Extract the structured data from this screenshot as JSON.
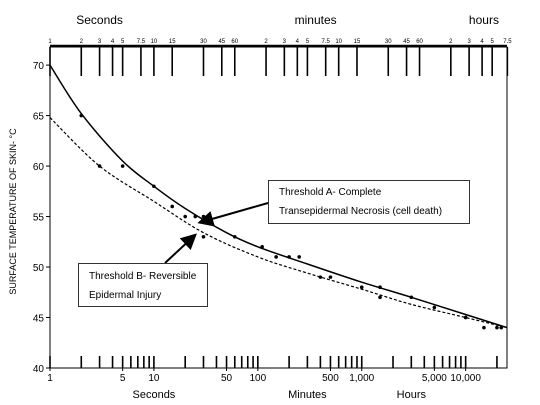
{
  "chart_data": {
    "type": "line",
    "ylabel": "SURFACE TEMPERATURE OF SKIN- °C",
    "ylim": [
      40,
      71
    ],
    "yticks": [
      40,
      45,
      50,
      55,
      60,
      65,
      70
    ],
    "x_scale": "log",
    "xlim": [
      1,
      25000
    ],
    "bottom_axis": {
      "ticks": [
        {
          "x": 1,
          "label": "1"
        },
        {
          "x": 5,
          "label": "5"
        },
        {
          "x": 10,
          "label": "10"
        },
        {
          "x": 50,
          "label": "50"
        },
        {
          "x": 100,
          "label": "100"
        },
        {
          "x": 500,
          "label": "500"
        },
        {
          "x": 1000,
          "label": "1,000"
        },
        {
          "x": 5000,
          "label": "5,000"
        },
        {
          "x": 10000,
          "label": "10,000"
        }
      ],
      "unit_labels": [
        {
          "text": "Seconds",
          "x": 10
        },
        {
          "text": "Minutes",
          "x": 300
        },
        {
          "text": "Hours",
          "x": 3000
        }
      ]
    },
    "top_axis": {
      "unit_labels": [
        {
          "text": "Seconds",
          "x": 3
        },
        {
          "text": "minutes",
          "x": 360
        },
        {
          "text": "hours",
          "x": 15000
        }
      ],
      "ticks": [
        {
          "x": 1,
          "label": "1"
        },
        {
          "x": 2,
          "label": "2"
        },
        {
          "x": 3,
          "label": "3"
        },
        {
          "x": 4,
          "label": "4"
        },
        {
          "x": 5,
          "label": "5"
        },
        {
          "x": 7.5,
          "label": "7.5"
        },
        {
          "x": 10,
          "label": "10"
        },
        {
          "x": 15,
          "label": "15"
        },
        {
          "x": 30,
          "label": "30"
        },
        {
          "x": 45,
          "label": "45"
        },
        {
          "x": 60,
          "label": "60"
        },
        {
          "x": 120,
          "label": "2"
        },
        {
          "x": 180,
          "label": "3"
        },
        {
          "x": 240,
          "label": "4"
        },
        {
          "x": 300,
          "label": "5"
        },
        {
          "x": 450,
          "label": "7.5"
        },
        {
          "x": 600,
          "label": "10"
        },
        {
          "x": 900,
          "label": "15"
        },
        {
          "x": 1800,
          "label": "30"
        },
        {
          "x": 2700,
          "label": "45"
        },
        {
          "x": 3600,
          "label": "60"
        },
        {
          "x": 7200,
          "label": "2"
        },
        {
          "x": 10800,
          "label": "3"
        },
        {
          "x": 14400,
          "label": "4"
        },
        {
          "x": 18000,
          "label": "5"
        },
        {
          "x": 25200,
          "label": "7.5"
        }
      ]
    },
    "series": [
      {
        "name": "Threshold A- Complete Transepidermal Necrosis (cell death)",
        "style": "solid",
        "color": "#000000",
        "curve": [
          [
            1,
            70
          ],
          [
            2,
            65.2
          ],
          [
            5,
            60.5
          ],
          [
            10,
            58
          ],
          [
            20,
            55.8
          ],
          [
            50,
            53.4
          ],
          [
            100,
            52
          ],
          [
            300,
            50.3
          ],
          [
            1000,
            48.5
          ],
          [
            3000,
            47
          ],
          [
            10000,
            45.3
          ],
          [
            25000,
            44
          ]
        ],
        "points": [
          [
            2,
            65
          ],
          [
            5,
            60
          ],
          [
            10,
            58
          ],
          [
            15,
            56
          ],
          [
            20,
            55
          ],
          [
            25,
            55
          ],
          [
            30,
            55
          ],
          [
            60,
            53
          ],
          [
            110,
            52
          ],
          [
            150,
            51
          ],
          [
            200,
            51
          ],
          [
            250,
            51
          ],
          [
            400,
            49
          ],
          [
            500,
            49
          ],
          [
            1000,
            48
          ],
          [
            1500,
            48
          ],
          [
            3000,
            47
          ],
          [
            5000,
            46
          ],
          [
            10000,
            45
          ],
          [
            15000,
            44
          ],
          [
            20000,
            44
          ]
        ]
      },
      {
        "name": "Threshold B- Reversible Epidermal Injury",
        "style": "dashed",
        "color": "#000000",
        "curve": [
          [
            1,
            64.8
          ],
          [
            3,
            60
          ],
          [
            10,
            56.5
          ],
          [
            30,
            53.4
          ],
          [
            100,
            51
          ],
          [
            300,
            49.4
          ],
          [
            1000,
            47.8
          ],
          [
            3000,
            46.3
          ],
          [
            10000,
            45
          ],
          [
            25000,
            44
          ]
        ],
        "points": [
          [
            3,
            60
          ],
          [
            30,
            53
          ],
          [
            1500,
            47
          ],
          [
            10000,
            45
          ],
          [
            22000,
            44
          ]
        ]
      }
    ],
    "annotations": [
      {
        "text_lines": [
          "Threshold A- Complete",
          "Transepidermal Necrosis (cell death)"
        ],
        "arrow_to": [
          25,
          54.3
        ]
      },
      {
        "text_lines": [
          "Threshold B- Reversible",
          "Epidermal Injury"
        ],
        "arrow_to": [
          30,
          53.6
        ]
      }
    ]
  }
}
